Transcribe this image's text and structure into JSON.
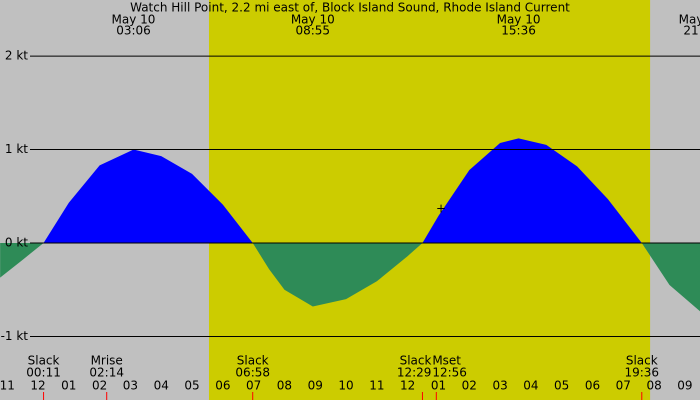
{
  "chart_data": {
    "type": "area",
    "title": "Watch Hill Point, 2.2 mi east of, Block Island Sound, Rhode Island Current",
    "x": [
      -1.23,
      -0.5,
      0.18,
      1.0,
      2.0,
      3.1,
      4.0,
      5.0,
      6.0,
      6.97,
      7.5,
      8.0,
      8.92,
      10.0,
      11.0,
      12.0,
      12.48,
      13.0,
      14.0,
      15.0,
      15.6,
      16.5,
      17.5,
      18.5,
      19.6,
      20.5,
      21.49
    ],
    "values": [
      -0.37,
      -0.18,
      0,
      0.43,
      0.83,
      1.0,
      0.93,
      0.74,
      0.41,
      0,
      -0.28,
      -0.5,
      -0.68,
      -0.6,
      -0.41,
      -0.14,
      0,
      0.29,
      0.78,
      1.07,
      1.12,
      1.05,
      0.82,
      0.47,
      0,
      -0.45,
      -0.73
    ],
    "positive_color": "#0000ff",
    "negative_color": "#2e8b57",
    "background_color": "#c0c0c0",
    "daylight_color": "#cccc00",
    "daylight": [
      5.55,
      19.87
    ],
    "xlim": [
      -1.234,
      21.49
    ],
    "ylim": [
      -1.68,
      2.6
    ],
    "yticks": [
      {
        "value": 2,
        "label": "2 kt"
      },
      {
        "value": 1,
        "label": "1 kt"
      },
      {
        "value": 0,
        "label": "0 kt"
      },
      {
        "value": -1,
        "label": "-1 kt"
      }
    ],
    "xticks": [
      {
        "value": -1,
        "label": "11"
      },
      {
        "value": 0,
        "label": "12"
      },
      {
        "value": 1,
        "label": "01"
      },
      {
        "value": 2,
        "label": "02"
      },
      {
        "value": 3,
        "label": "03"
      },
      {
        "value": 4,
        "label": "04"
      },
      {
        "value": 5,
        "label": "05"
      },
      {
        "value": 6,
        "label": "06"
      },
      {
        "value": 7,
        "label": "07"
      },
      {
        "value": 8,
        "label": "08"
      },
      {
        "value": 9,
        "label": "09"
      },
      {
        "value": 10,
        "label": "10"
      },
      {
        "value": 11,
        "label": "11"
      },
      {
        "value": 12,
        "label": "12"
      },
      {
        "value": 13,
        "label": "01"
      },
      {
        "value": 14,
        "label": "02"
      },
      {
        "value": 15,
        "label": "03"
      },
      {
        "value": 16,
        "label": "04"
      },
      {
        "value": 17,
        "label": "05"
      },
      {
        "value": 18,
        "label": "06"
      },
      {
        "value": 19,
        "label": "07"
      },
      {
        "value": 20,
        "label": "08"
      },
      {
        "value": 21,
        "label": "09"
      }
    ],
    "headers": [
      {
        "date": "May 10",
        "time": "03:06",
        "x": 3.1
      },
      {
        "date": "May 10",
        "time": "08:55",
        "x": 8.92
      },
      {
        "date": "May 10",
        "time": "15:36",
        "x": 15.6
      },
      {
        "date": "May",
        "time": "21",
        "x": 21.2
      }
    ],
    "events": [
      {
        "label": "Slack",
        "time": "00:11",
        "x": 0.18
      },
      {
        "label": "Mrise",
        "time": "02:14",
        "x": 2.23
      },
      {
        "label": "Slack",
        "time": "06:58",
        "x": 6.97
      },
      {
        "label": "Slack",
        "time": "12:29",
        "x": 12.48
      },
      {
        "label": "Mset",
        "time": "12:56",
        "x": 12.93
      },
      {
        "label": "Slack",
        "time": "19:36",
        "x": 19.6
      }
    ]
  }
}
